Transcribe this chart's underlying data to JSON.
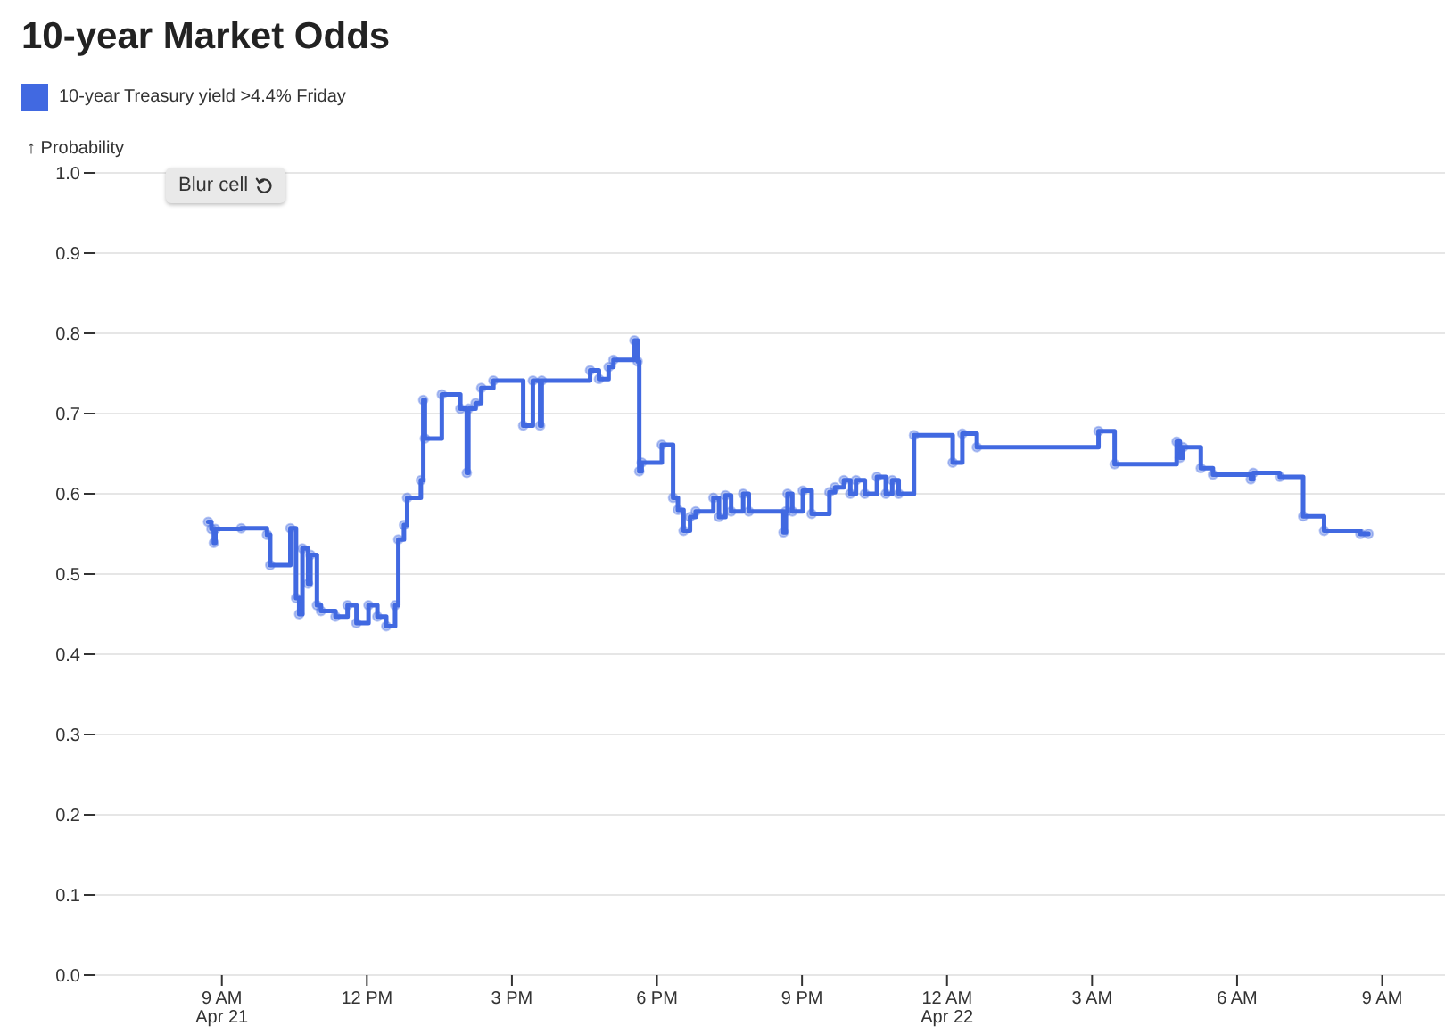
{
  "chart_data": {
    "type": "step",
    "title": "10-year Market Odds",
    "ylabel": "↑ Probability",
    "legend": "top left",
    "grid": "y",
    "marker": "circle",
    "line_style": "solid",
    "annotations": [
      "Blur cell"
    ],
    "xlim": [
      "--04-21T06:22",
      "--04-22T10:18"
    ],
    "ylim": [
      0,
      1
    ],
    "xticks": [
      {
        "value": "--04-21T09:00",
        "label": "9 AM\nApr 21"
      },
      {
        "value": "--04-21T12:00",
        "label": "12 PM"
      },
      {
        "value": "--04-21T15:00",
        "label": "3 PM"
      },
      {
        "value": "--04-21T18:00",
        "label": "6 PM"
      },
      {
        "value": "--04-21T21:00",
        "label": "9 PM"
      },
      {
        "value": "--04-22T00:00",
        "label": "12 AM\nApr 22"
      },
      {
        "value": "--04-22T03:00",
        "label": "3 AM"
      },
      {
        "value": "--04-22T06:00",
        "label": "6 AM"
      },
      {
        "value": "--04-22T09:00",
        "label": "9 AM"
      }
    ],
    "yticks": [
      {
        "value": 0,
        "label": "0.0"
      },
      0.1,
      0.2,
      0.3,
      0.4,
      0.5,
      0.6,
      0.7,
      0.8,
      0.9,
      {
        "value": 1,
        "label": "1.0"
      }
    ],
    "x": [
      "--04-21T08:43",
      "--04-21T08:47",
      "--04-21T08:50",
      "--04-21T08:52",
      "--04-21T09:24",
      "--04-21T09:56",
      "--04-21T10:00",
      "--04-21T10:25",
      "--04-21T10:32",
      "--04-21T10:36",
      "--04-21T10:40",
      "--04-21T10:47",
      "--04-21T10:50",
      "--04-21T10:58",
      "--04-21T11:03",
      "--04-21T11:21",
      "--04-21T11:36",
      "--04-21T11:47",
      "--04-21T12:02",
      "--04-21T12:13",
      "--04-21T12:24",
      "--04-21T12:35",
      "--04-21T12:39",
      "--04-21T12:46",
      "--04-21T12:50",
      "--04-21T13:07",
      "--04-21T13:10",
      "--04-21T13:12",
      "--04-21T13:33",
      "--04-21T13:56",
      "--04-21T14:04",
      "--04-21T14:06",
      "--04-21T14:15",
      "--04-21T14:22",
      "--04-21T14:37",
      "--04-21T15:14",
      "--04-21T15:26",
      "--04-21T15:35",
      "--04-21T15:37",
      "--04-21T16:37",
      "--04-21T16:48",
      "--04-21T17:00",
      "--04-21T17:06",
      "--04-21T17:32",
      "--04-21T17:36",
      "--04-21T17:38",
      "--04-21T17:41",
      "--04-21T18:06",
      "--04-21T18:20",
      "--04-21T18:26",
      "--04-21T18:33",
      "--04-21T18:41",
      "--04-21T18:48",
      "--04-21T19:10",
      "--04-21T19:17",
      "--04-21T19:25",
      "--04-21T19:32",
      "--04-21T19:47",
      "--04-21T19:54",
      "--04-21T20:37",
      "--04-21T20:40",
      "--04-21T20:42",
      "--04-21T20:48",
      "--04-21T21:01",
      "--04-21T21:12",
      "--04-21T21:34",
      "--04-21T21:41",
      "--04-21T21:52",
      "--04-21T22:00",
      "--04-21T22:07",
      "--04-21T22:18",
      "--04-21T22:33",
      "--04-21T22:44",
      "--04-21T22:52",
      "--04-21T23:00",
      "--04-21T23:19",
      "--04-22T00:07",
      "--04-22T00:19",
      "--04-22T00:37",
      "--04-22T03:08",
      "--04-22T03:28",
      "--04-22T04:45",
      "--04-22T04:49",
      "--04-22T04:53",
      "--04-22T05:15",
      "--04-22T05:30",
      "--04-22T06:17",
      "--04-22T06:20",
      "--04-22T06:53",
      "--04-22T07:22",
      "--04-22T07:48",
      "--04-22T08:33",
      "--04-22T08:43"
    ],
    "series": [
      {
        "name": "10-year Treasury yield >4.4% Friday",
        "color": "#4169e1",
        "values": [
          0.565,
          0.556,
          0.539,
          0.556,
          0.557,
          0.549,
          0.511,
          0.557,
          0.47,
          0.45,
          0.532,
          0.488,
          0.524,
          0.461,
          0.454,
          0.447,
          0.461,
          0.439,
          0.461,
          0.447,
          0.435,
          0.461,
          0.543,
          0.561,
          0.595,
          0.617,
          0.717,
          0.669,
          0.724,
          0.706,
          0.626,
          0.706,
          0.713,
          0.732,
          0.741,
          0.685,
          0.741,
          0.685,
          0.741,
          0.754,
          0.743,
          0.758,
          0.767,
          0.791,
          0.765,
          0.628,
          0.639,
          0.661,
          0.595,
          0.58,
          0.554,
          0.571,
          0.578,
          0.595,
          0.571,
          0.598,
          0.578,
          0.6,
          0.578,
          0.552,
          0.578,
          0.6,
          0.578,
          0.604,
          0.575,
          0.602,
          0.608,
          0.617,
          0.6,
          0.617,
          0.6,
          0.621,
          0.6,
          0.617,
          0.6,
          0.673,
          0.639,
          0.675,
          0.658,
          0.678,
          0.637,
          0.665,
          0.645,
          0.658,
          0.632,
          0.624,
          0.618,
          0.626,
          0.621,
          0.572,
          0.554,
          0.55,
          0.55
        ]
      }
    ]
  }
}
